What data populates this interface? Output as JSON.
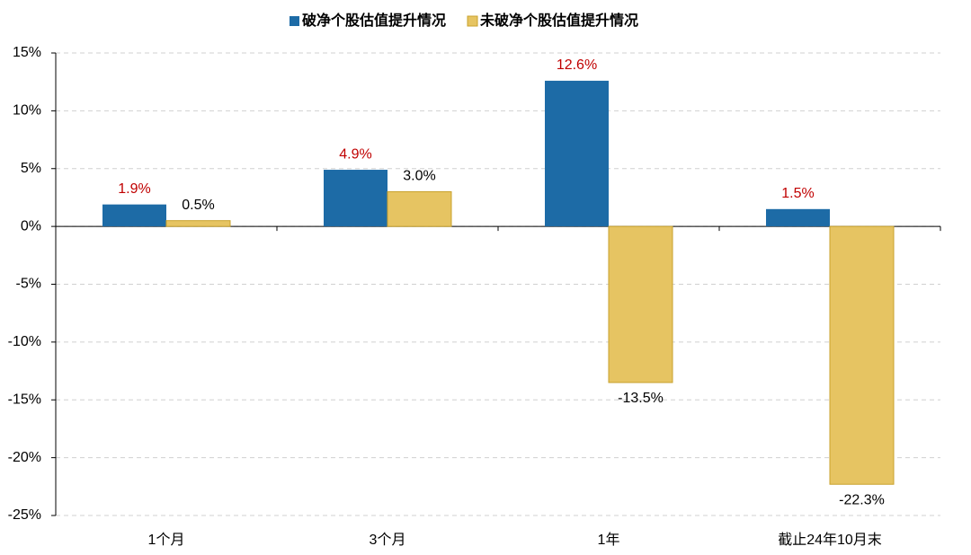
{
  "chart_data": {
    "type": "bar",
    "categories": [
      "1个月",
      "3个月",
      "1年",
      "截止24年10月末"
    ],
    "series": [
      {
        "name": "破净个股估值提升情况",
        "color": "#1d6ba6",
        "label_color": "#c00000",
        "values": [
          1.9,
          4.9,
          12.6,
          1.5
        ],
        "value_labels": [
          "1.9%",
          "4.9%",
          "12.6%",
          "1.5%"
        ]
      },
      {
        "name": "未破净个股估值提升情况",
        "color": "#e6c462",
        "label_color": "#000000",
        "values": [
          0.5,
          3.0,
          -13.5,
          -22.3
        ],
        "value_labels": [
          "0.5%",
          "3.0%",
          "-13.5%",
          "-22.3%"
        ]
      }
    ],
    "ylim": [
      -25,
      15
    ],
    "yticks": [
      {
        "value": -25,
        "label": "-25%"
      },
      {
        "value": -20,
        "label": "-20%"
      },
      {
        "value": -15,
        "label": "-15%"
      },
      {
        "value": -10,
        "label": "-10%"
      },
      {
        "value": -5,
        "label": "-5%"
      },
      {
        "value": 0,
        "label": "0%"
      },
      {
        "value": 5,
        "label": "5%"
      },
      {
        "value": 10,
        "label": "10%"
      },
      {
        "value": 15,
        "label": "15%"
      }
    ],
    "grid": true,
    "legend": "top"
  }
}
